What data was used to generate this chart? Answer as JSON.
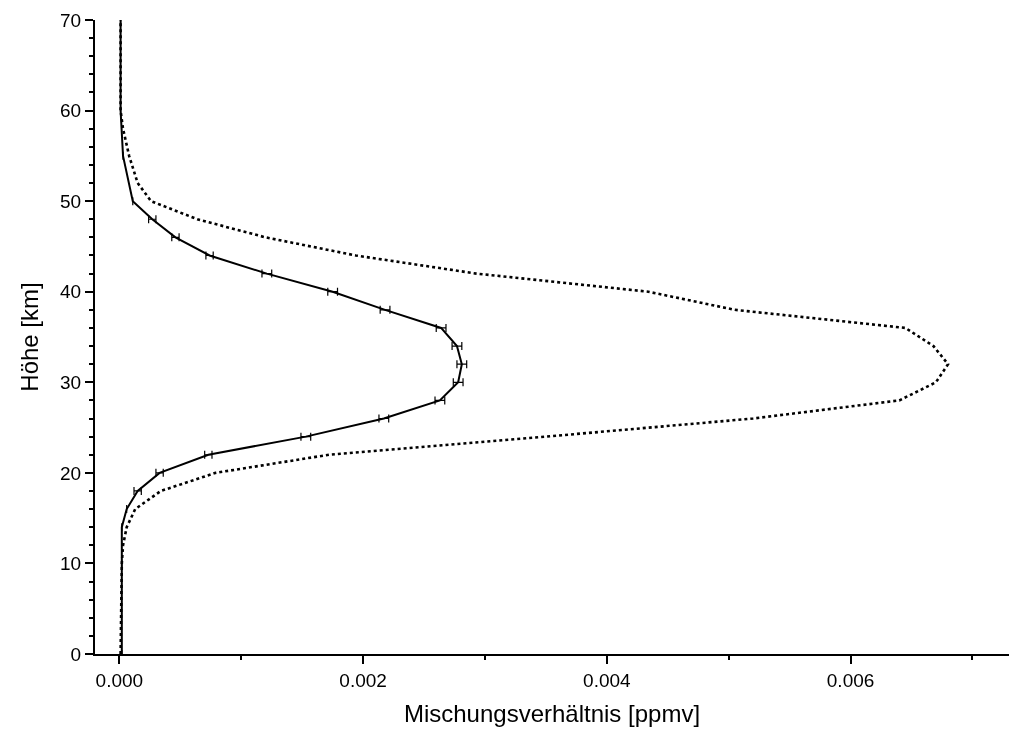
{
  "chart_data": {
    "type": "line",
    "orientation": "horizontal",
    "xlabel": "Mischungsverhältnis [ppmv]",
    "ylabel": "Höhe [km]",
    "xlim": [
      -0.0002,
      0.0073
    ],
    "ylim": [
      0,
      70
    ],
    "xticks": [
      {
        "value": 0,
        "label": "0.000"
      },
      {
        "value": 0.002,
        "label": "0.002"
      },
      {
        "value": 0.004,
        "label": "0.004"
      },
      {
        "value": 0.006,
        "label": "0.006"
      }
    ],
    "yticks": [
      0,
      10,
      20,
      30,
      40,
      50,
      60,
      70
    ],
    "grid": false,
    "legend": false,
    "series": [
      {
        "color": "#000000",
        "line_style": "solid",
        "x": [
          0,
          10,
          14,
          16,
          18,
          20,
          22,
          24,
          26,
          28,
          30,
          32,
          34,
          36,
          38,
          40,
          42,
          44,
          46,
          48,
          50,
          55,
          60,
          70
        ],
        "values": [
          2e-05,
          2e-05,
          2e-05,
          6e-05,
          0.00015,
          0.00033,
          0.00073,
          0.00153,
          0.00217,
          0.00263,
          0.00278,
          0.00281,
          0.00277,
          0.00264,
          0.00218,
          0.00175,
          0.00121,
          0.00074,
          0.00046,
          0.00027,
          0.00011,
          3e-05,
          1e-05,
          1e-05
        ],
        "errors": [
          null,
          null,
          null,
          null,
          3e-05,
          3e-05,
          3e-05,
          4e-05,
          4e-05,
          4e-05,
          4e-05,
          4e-05,
          4e-05,
          4e-05,
          4e-05,
          4e-05,
          4e-05,
          3e-05,
          3e-05,
          3e-05,
          null,
          null,
          null,
          null
        ]
      },
      {
        "color": "#000000",
        "line_style": "dotted",
        "x": [
          0,
          10,
          12,
          14,
          16,
          18,
          20,
          22,
          24,
          26,
          28,
          30,
          32,
          34,
          36,
          38,
          40,
          42,
          44,
          46,
          48,
          50,
          52,
          55,
          58,
          60,
          70
        ],
        "values": [
          1e-05,
          2e-05,
          3e-05,
          6e-05,
          0.00013,
          0.00034,
          0.00079,
          0.00172,
          0.0035,
          0.0052,
          0.0064,
          0.0067,
          0.0068,
          0.00668,
          0.00645,
          0.00505,
          0.00434,
          0.00293,
          0.00194,
          0.0012,
          0.00064,
          0.00026,
          0.00015,
          8e-05,
          3e-05,
          1e-05,
          1e-05
        ]
      }
    ]
  }
}
